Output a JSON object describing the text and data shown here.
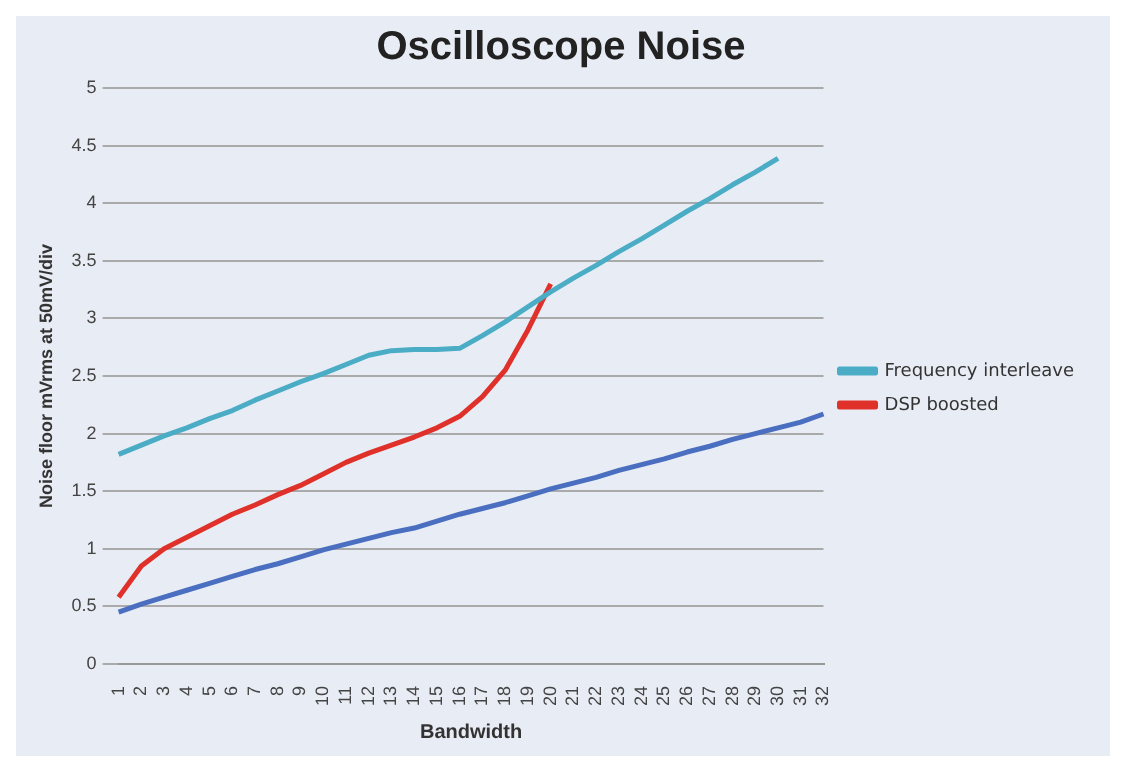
{
  "chart_data": {
    "type": "line",
    "title": "Oscilloscope Noise",
    "xlabel": "Bandwidth",
    "ylabel": "Noise floor mVrms at 50mV/div",
    "categories": [
      "1",
      "2",
      "3",
      "4",
      "5",
      "6",
      "7",
      "8",
      "9",
      "10",
      "11",
      "12",
      "13",
      "14",
      "15",
      "16",
      "17",
      "18",
      "19",
      "20",
      "21",
      "22",
      "23",
      "24",
      "25",
      "26",
      "27",
      "28",
      "29",
      "30",
      "31",
      "32"
    ],
    "series": [
      {
        "name": "Frequency interleave",
        "color": "#4bacc6",
        "values": [
          1.82,
          1.9,
          1.98,
          2.05,
          2.13,
          2.2,
          2.29,
          2.37,
          2.45,
          2.52,
          2.6,
          2.68,
          2.72,
          2.73,
          2.73,
          2.74,
          2.85,
          2.97,
          3.1,
          3.23,
          3.35,
          3.46,
          3.58,
          3.69,
          3.81,
          3.93,
          4.04,
          4.16,
          4.27,
          4.39,
          null,
          null
        ]
      },
      {
        "name": "DSP boosted",
        "color": "#e0302a",
        "values": [
          0.58,
          0.85,
          1.0,
          1.1,
          1.2,
          1.3,
          1.38,
          1.47,
          1.55,
          1.65,
          1.75,
          1.83,
          1.9,
          1.97,
          2.05,
          2.15,
          2.32,
          2.55,
          2.9,
          3.3,
          null,
          null,
          null,
          null,
          null,
          null,
          null,
          null,
          null,
          null,
          null,
          null
        ]
      },
      {
        "color": "#4a6fc0",
        "values": [
          0.45,
          0.52,
          0.58,
          0.64,
          0.7,
          0.76,
          0.82,
          0.87,
          0.93,
          0.99,
          1.04,
          1.09,
          1.14,
          1.18,
          1.24,
          1.3,
          1.35,
          1.4,
          1.46,
          1.52,
          1.57,
          1.62,
          1.68,
          1.73,
          1.78,
          1.84,
          1.89,
          1.95,
          2.0,
          2.05,
          2.1,
          2.17
        ]
      }
    ],
    "ylim": [
      0,
      5
    ],
    "yticks": [
      0,
      0.5,
      1,
      1.5,
      2,
      2.5,
      3,
      3.5,
      4,
      4.5,
      5
    ],
    "grid": "y",
    "legend": "right",
    "marker": "none",
    "line_style": "solid"
  }
}
